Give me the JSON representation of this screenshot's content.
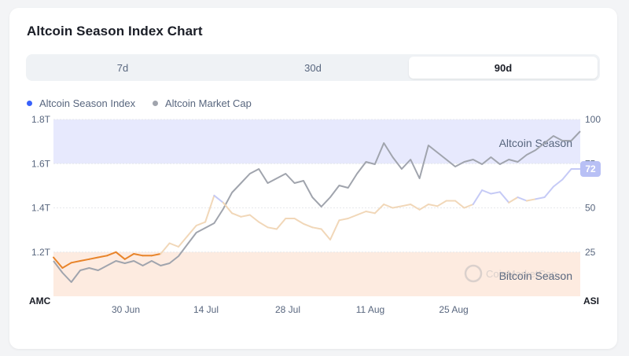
{
  "title": "Altcoin Season Index Chart",
  "tabs": [
    {
      "label": "7d",
      "active": false
    },
    {
      "label": "30d",
      "active": false
    },
    {
      "label": "90d",
      "active": true
    }
  ],
  "legend": [
    {
      "label": "Altcoin Season Index",
      "color": "#3861fb"
    },
    {
      "label": "Altcoin Market Cap",
      "color": "#a0a4ad"
    }
  ],
  "colors": {
    "altseason_band": "#e7e9fd",
    "bitcoinseason_band": "#fdebe0",
    "market_cap_line": "#a0a4ad",
    "index_line_high": "#c5caf6",
    "index_line_mid": "#f1d7b8",
    "index_line_low": "#e8842a",
    "current_badge": "#b8c0f5"
  },
  "watermark": "CoinMarketCap",
  "chart_data": {
    "type": "line",
    "x_ticks": [
      "30 Jun",
      "14 Jul",
      "28 Jul",
      "11 Aug",
      "25 Aug"
    ],
    "left_axis": {
      "label": "AMC",
      "ticks": [
        "1.8T",
        "1.6T",
        "1.4T",
        "1.2T"
      ],
      "ylim": [
        1.05,
        1.8
      ]
    },
    "right_axis": {
      "label": "ASI",
      "ticks": [
        "100",
        "75",
        "50",
        "25"
      ],
      "ylim": [
        0,
        100
      ]
    },
    "zones": [
      {
        "label": "Altcoin Season",
        "from": 75,
        "to": 100
      },
      {
        "label": "Bitcoin Season",
        "from": 0,
        "to": 25
      }
    ],
    "current_value": "72",
    "series": [
      {
        "name": "Altcoin Market Cap",
        "axis": "left",
        "values": [
          1.2,
          1.15,
          1.11,
          1.16,
          1.17,
          1.16,
          1.18,
          1.2,
          1.19,
          1.2,
          1.18,
          1.2,
          1.18,
          1.19,
          1.22,
          1.27,
          1.32,
          1.34,
          1.36,
          1.42,
          1.49,
          1.53,
          1.57,
          1.59,
          1.53,
          1.55,
          1.57,
          1.53,
          1.54,
          1.47,
          1.43,
          1.47,
          1.52,
          1.51,
          1.57,
          1.62,
          1.61,
          1.7,
          1.64,
          1.59,
          1.63,
          1.55,
          1.69,
          1.66,
          1.63,
          1.6,
          1.62,
          1.63,
          1.61,
          1.64,
          1.61,
          1.63,
          1.62,
          1.65,
          1.67,
          1.7,
          1.73,
          1.71,
          1.71,
          1.75
        ]
      },
      {
        "name": "Altcoin Season Index",
        "axis": "right",
        "values": [
          22,
          16,
          19,
          20,
          21,
          22,
          23,
          25,
          21,
          24,
          23,
          23,
          24,
          30,
          28,
          34,
          40,
          42,
          57,
          53,
          47,
          45,
          46,
          42,
          39,
          38,
          44,
          44,
          41,
          39,
          38,
          32,
          43,
          44,
          46,
          48,
          47,
          52,
          50,
          51,
          52,
          49,
          52,
          51,
          54,
          54,
          50,
          52,
          60,
          58,
          59,
          53,
          56,
          54,
          55,
          56,
          62,
          66,
          72,
          72
        ]
      }
    ]
  }
}
